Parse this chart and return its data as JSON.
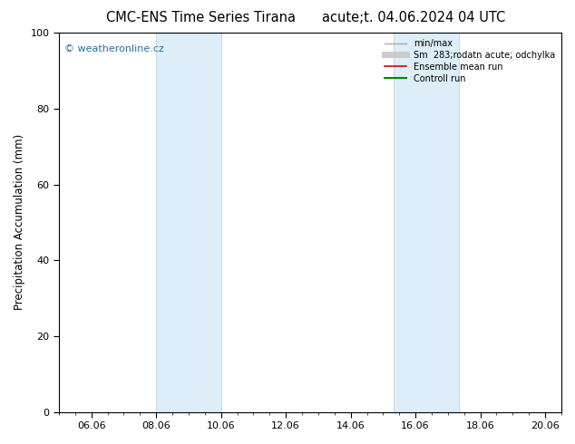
{
  "title_left": "CMC-ENS Time Series Tirana",
  "title_right": "acute;t. 04.06.2024 04 UTC",
  "ylabel": "Precipitation Accumulation (mm)",
  "ylim": [
    0,
    100
  ],
  "xlim_days": [
    0.0,
    15.33
  ],
  "xtick_positions_days": [
    1.0,
    3.0,
    5.0,
    7.0,
    9.0,
    11.0,
    13.0,
    15.0
  ],
  "xtick_labels": [
    "06.06",
    "08.06",
    "10.06",
    "12.06",
    "14.06",
    "16.06",
    "18.06",
    "20.06"
  ],
  "shaded_bands": [
    {
      "x0_day": 3.0,
      "x1_day": 5.0
    },
    {
      "x0_day": 10.33,
      "x1_day": 12.33
    }
  ],
  "band_color": "#ddeef8",
  "band_edge_color": "#b0cfe0",
  "watermark_text": "© weatheronline.cz",
  "watermark_color": "#2471a3",
  "legend_items": [
    {
      "label": "min/max",
      "color": "#aaaaaa",
      "lw": 1.0,
      "type": "line"
    },
    {
      "label": "Sm  283;rodatn acute; odchylka",
      "color": "#cccccc",
      "lw": 5,
      "type": "line"
    },
    {
      "label": "Ensemble mean run",
      "color": "#dd0000",
      "lw": 1.2,
      "type": "line"
    },
    {
      "label": "Controll run",
      "color": "#008800",
      "lw": 1.5,
      "type": "line"
    }
  ],
  "bg_color": "#ffffff",
  "title_fontsize": 10.5,
  "axis_label_fontsize": 8.5,
  "tick_fontsize": 8,
  "watermark_fontsize": 8
}
